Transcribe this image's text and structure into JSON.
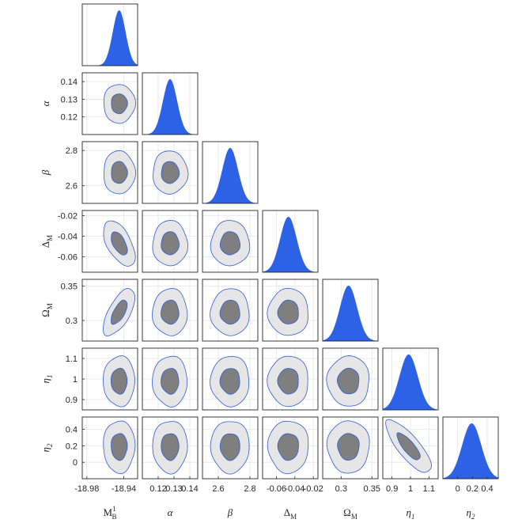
{
  "chart_data": {
    "type": "corner",
    "parameters": [
      {
        "key": "MB",
        "label_main": "M",
        "label_sub": "B",
        "label_sup": "1",
        "italic": false,
        "mean": -18.945,
        "sd": 0.007,
        "range": [
          -18.985,
          -18.925
        ],
        "ticks": [
          -18.98,
          -18.94
        ],
        "tick_labels": [
          "-18.98",
          "-18.94"
        ]
      },
      {
        "key": "alpha",
        "label_main": "α",
        "label_sub": "",
        "label_sup": "",
        "italic": true,
        "mean": 0.1275,
        "sd": 0.0045,
        "range": [
          0.11,
          0.145
        ],
        "ticks": [
          0.12,
          0.13,
          0.14
        ],
        "tick_labels": [
          "0.12",
          "0.13",
          "0.14"
        ]
      },
      {
        "key": "beta",
        "label_main": "β",
        "label_sub": "",
        "label_sup": "",
        "italic": true,
        "mean": 2.675,
        "sd": 0.05,
        "range": [
          2.5,
          2.85
        ],
        "ticks": [
          2.6,
          2.8
        ],
        "tick_labels": [
          "2.6",
          "2.8"
        ]
      },
      {
        "key": "DM",
        "label_main": "Δ",
        "label_sub": "M",
        "label_sup": "",
        "italic": false,
        "mean": -0.047,
        "sd": 0.009,
        "range": [
          -0.075,
          -0.015
        ],
        "ticks": [
          -0.06,
          -0.04,
          -0.02
        ],
        "tick_labels": [
          "-0.06",
          "-0.04",
          "-0.02"
        ]
      },
      {
        "key": "OM",
        "label_main": "Ω",
        "label_sub": "M",
        "label_sup": "",
        "italic": false,
        "mean": 0.312,
        "sd": 0.014,
        "range": [
          0.27,
          0.36
        ],
        "ticks": [
          0.3,
          0.35
        ],
        "tick_labels": [
          "0.3",
          "0.35"
        ]
      },
      {
        "key": "eta1",
        "label_main": "η",
        "label_sub": "1",
        "label_sup": "",
        "italic": true,
        "mean": 0.99,
        "sd": 0.05,
        "range": [
          0.85,
          1.15
        ],
        "ticks": [
          0.9,
          1.0,
          1.1
        ],
        "tick_labels": [
          "0.9",
          "1",
          "1.1"
        ]
      },
      {
        "key": "eta2",
        "label_main": "η",
        "label_sub": "2",
        "label_sup": "",
        "italic": true,
        "mean": 0.19,
        "sd": 0.13,
        "range": [
          -0.2,
          0.55
        ],
        "ticks": [
          0.0,
          0.2,
          0.4
        ],
        "tick_labels": [
          "0",
          "0.2",
          "0.4"
        ]
      }
    ],
    "correlations": [
      {
        "row": "DM",
        "col": "MB",
        "rho": -0.55
      },
      {
        "row": "OM",
        "col": "MB",
        "rho": 0.65
      },
      {
        "row": "eta2",
        "col": "eta1",
        "rho": -0.8
      }
    ],
    "colors": {
      "marginal_fill": "#2e62e6",
      "inner_contour": "#7f7f7f",
      "outer_contour": "#e6e6e6",
      "contour_edge": "#2e5bd8",
      "axis": "#262626",
      "grid": "#e5e5e5"
    },
    "grid": true
  }
}
